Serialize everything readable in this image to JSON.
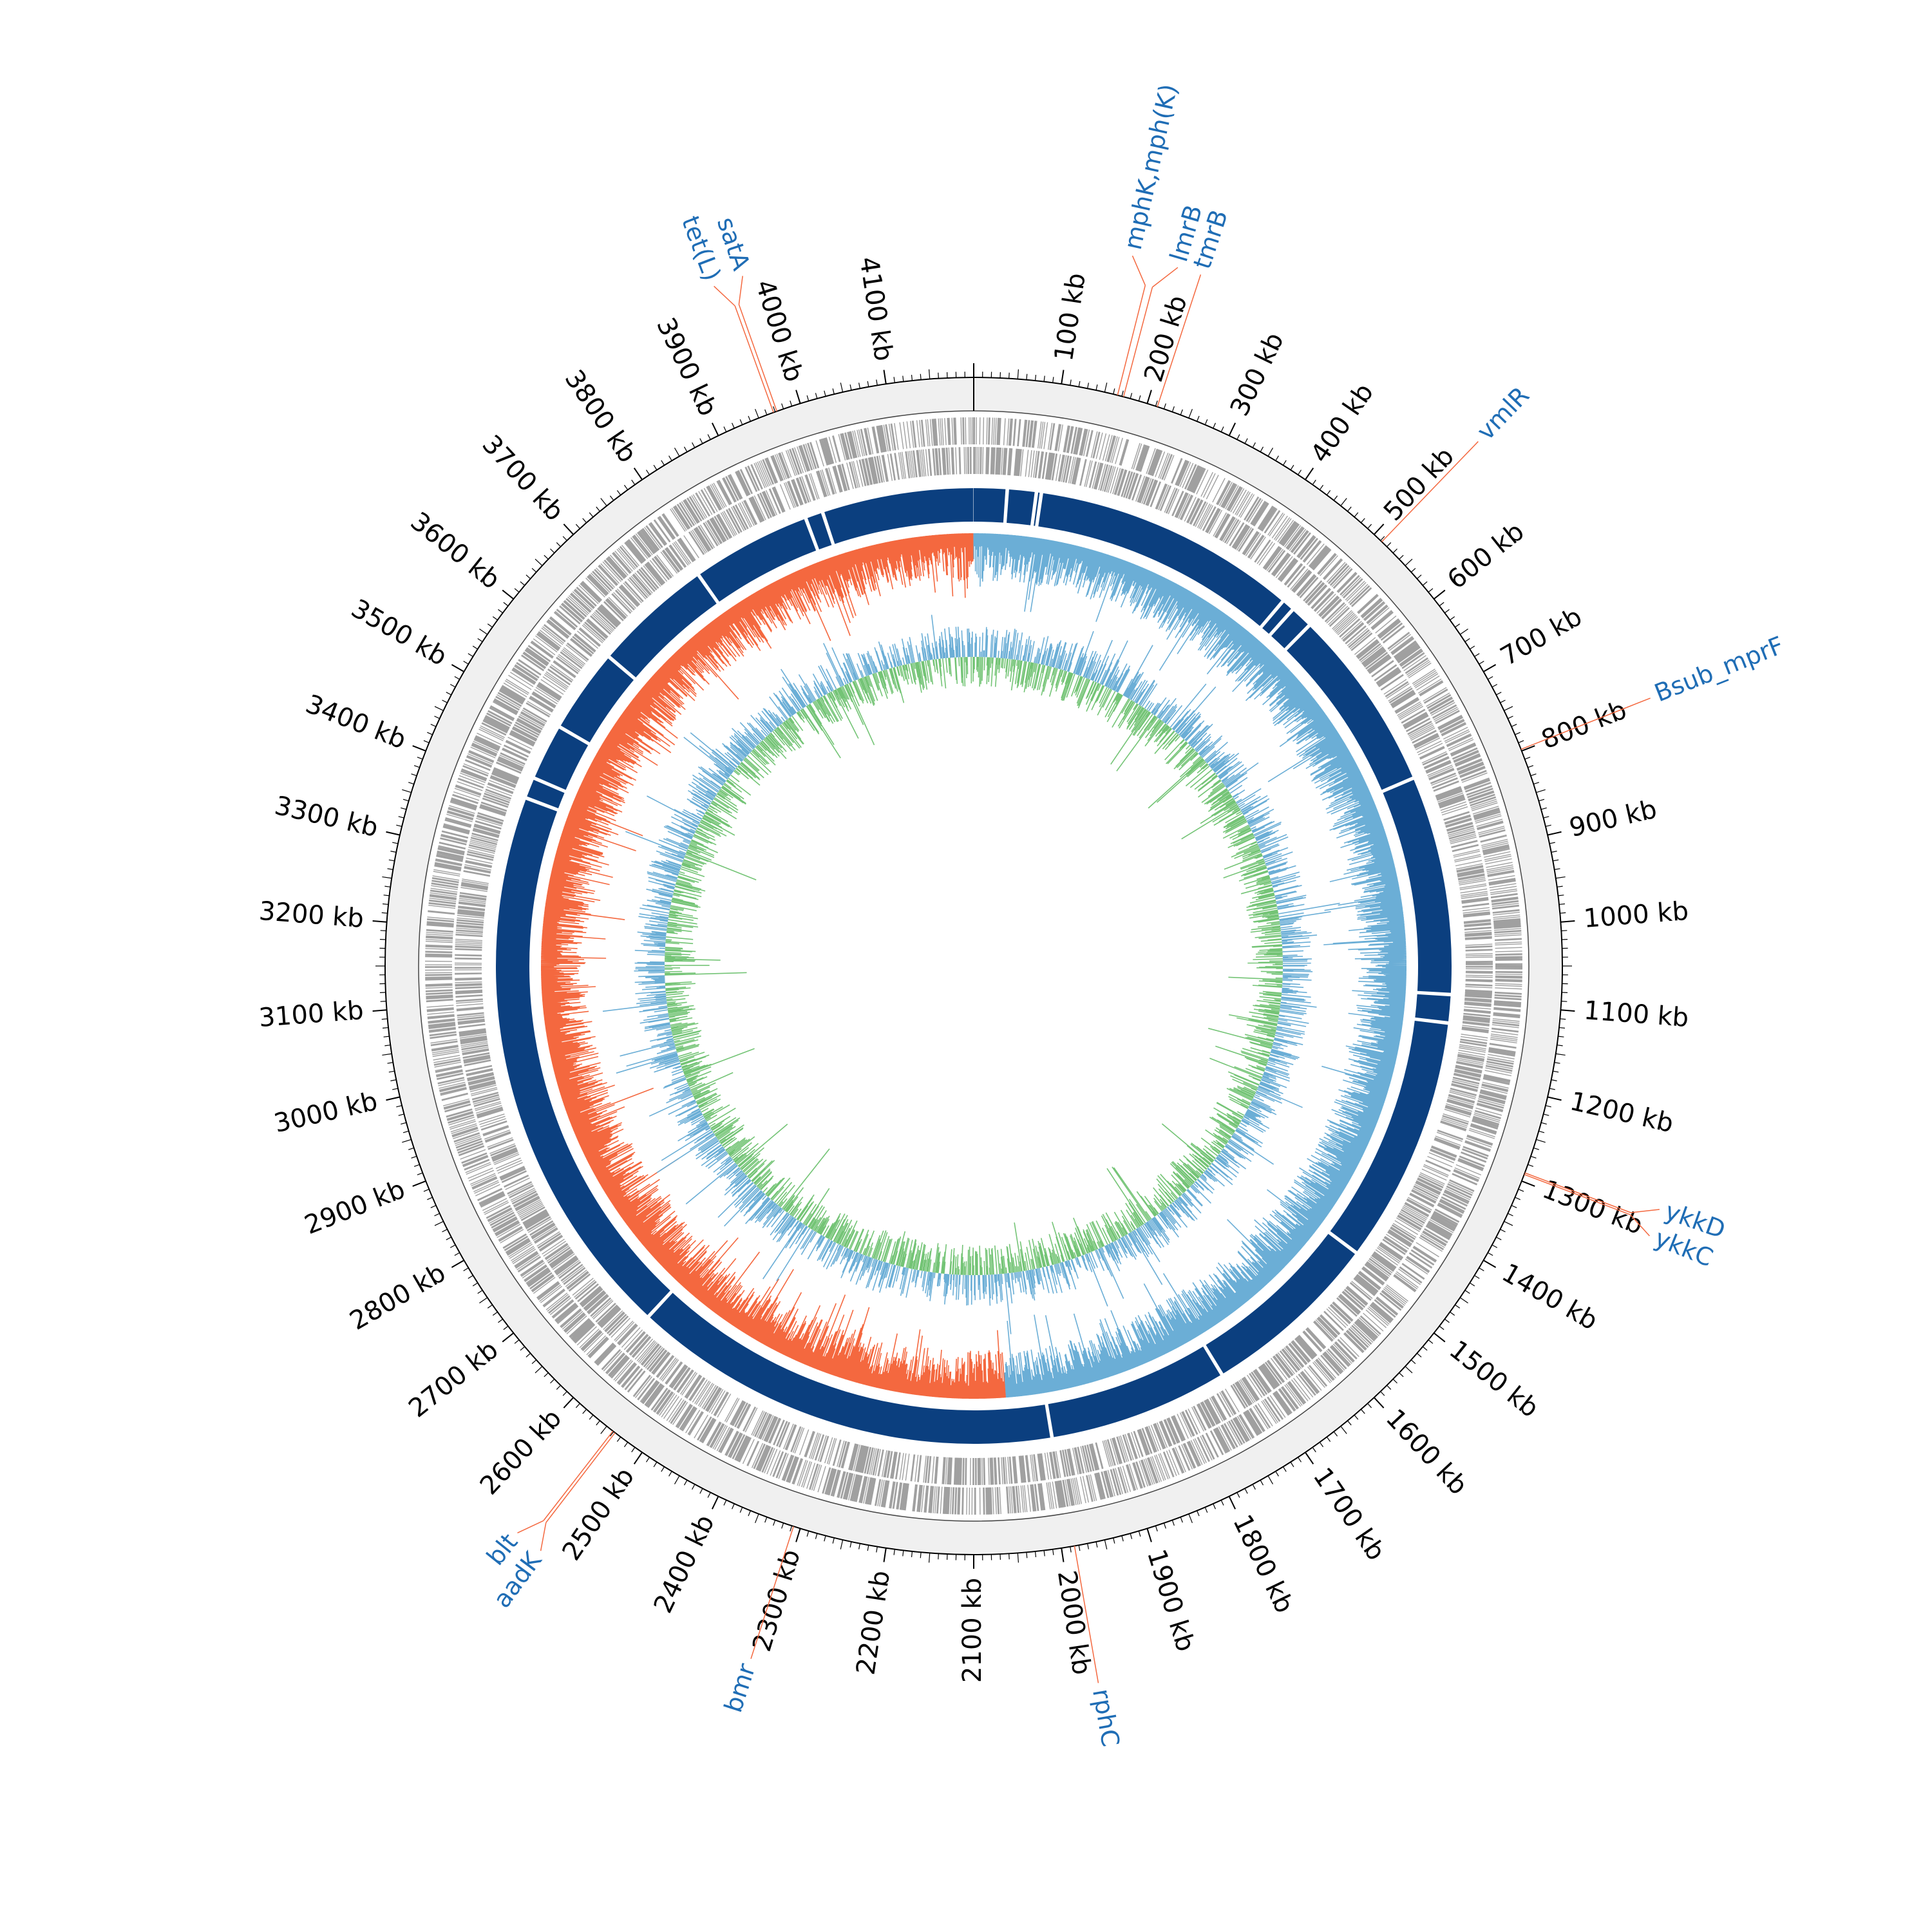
{
  "genome": {
    "length_kb": 4200,
    "tick_labels": [
      "100 kb",
      "200 kb",
      "300 kb",
      "400 kb",
      "500 kb",
      "600 kb",
      "700 kb",
      "800 kb",
      "900 kb",
      "1000 kb",
      "1100 kb",
      "1200 kb",
      "1300 kb",
      "1400 kb",
      "1500 kb",
      "1600 kb",
      "1700 kb",
      "1800 kb",
      "1900 kb",
      "2000 kb",
      "2100 kb",
      "2200 kb",
      "2300 kb",
      "2400 kb",
      "2500 kb",
      "2600 kb",
      "2700 kb",
      "2800 kb",
      "2900 kb",
      "3000 kb",
      "3100 kb",
      "3200 kb",
      "3300 kb",
      "3400 kb",
      "3500 kb",
      "3600 kb",
      "3700 kb",
      "3800 kb",
      "3900 kb",
      "4000 kb",
      "4100 kb"
    ],
    "tick_positions_kb": [
      100,
      200,
      300,
      400,
      500,
      600,
      700,
      800,
      900,
      1000,
      1100,
      1200,
      1300,
      1400,
      1500,
      1600,
      1700,
      1800,
      1900,
      2000,
      2100,
      2200,
      2300,
      2400,
      2500,
      2600,
      2700,
      2800,
      2900,
      3000,
      3100,
      3200,
      3300,
      3400,
      3500,
      3600,
      3700,
      3800,
      3900,
      4000,
      4100
    ]
  },
  "annotations": [
    {
      "label": "tet(L)",
      "kb": 3968
    },
    {
      "label": "satA",
      "kb": 3972
    },
    {
      "label": "mphK,mph(K)",
      "kb": 165
    },
    {
      "label": "lmrB",
      "kb": 172
    },
    {
      "label": "tmrB",
      "kb": 212
    },
    {
      "label": "vmlR",
      "kb": 512
    },
    {
      "label": "Bsub_mprF",
      "kb": 798
    },
    {
      "label": "ykkD",
      "kb": 1290
    },
    {
      "label": "ykkC",
      "kb": 1292
    },
    {
      "label": "rphC",
      "kb": 1985
    },
    {
      "label": "bmr",
      "kb": 2308
    },
    {
      "label": "aadK",
      "kb": 2538
    },
    {
      "label": "blt",
      "kb": 2541
    }
  ],
  "colors": {
    "outer_ring": "#f0f0f0",
    "gene_ticks": "#a0a0a0",
    "contig_blocks": "#0b3f7f",
    "gc_skew_positive": "#6baed6",
    "gc_skew_negative": "#f4683f",
    "gc_content_positive": "#74c476",
    "gc_content_negative": "#6baed6",
    "annotation_line": "#f4683f",
    "annotation_text": "#1f6db5"
  },
  "contig_gaps_kb": [
    47,
    88,
    95,
    470,
    488,
    520,
    780,
    1090,
    1130,
    1480,
    1735,
    1990,
    2600,
    3390,
    3420,
    3500,
    3620,
    3790,
    3960,
    3985
  ]
}
